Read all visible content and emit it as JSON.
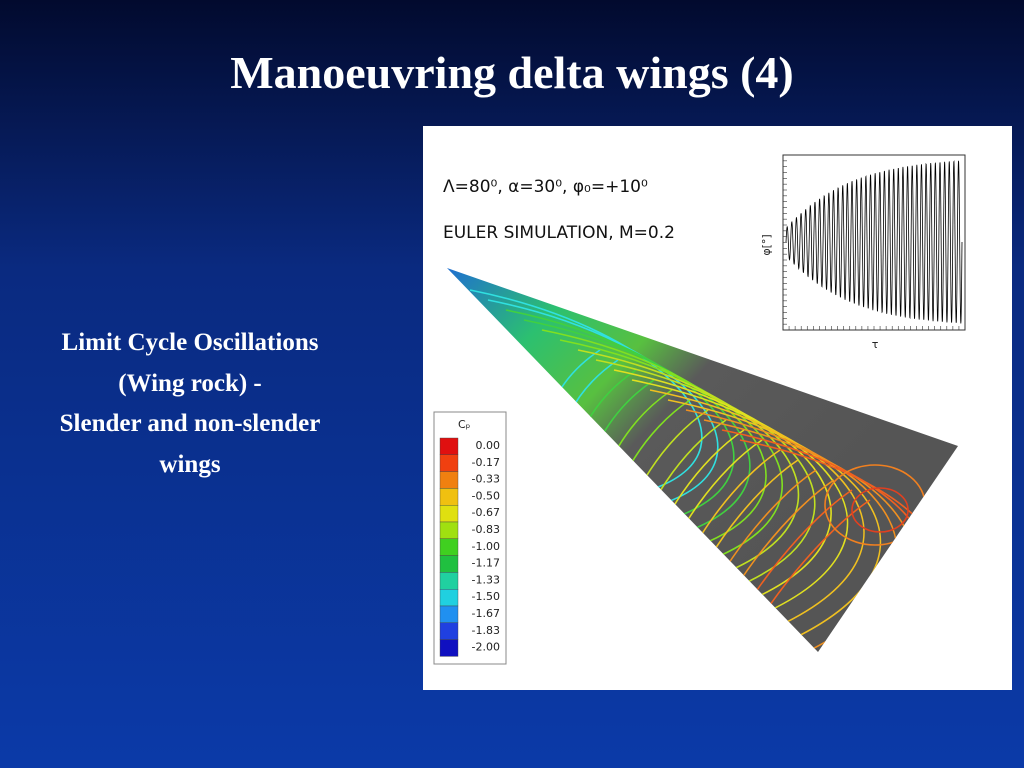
{
  "slide": {
    "title": "Manoeuvring delta wings (4)",
    "body": [
      "Limit Cycle Oscillations",
      "(Wing rock) -",
      "Slender and non-slender",
      "wings"
    ],
    "figure": {
      "parameters": "Λ=80⁰, α=30⁰, φ₀=+10⁰",
      "simulation": "EULER SIMULATION, M=0.2",
      "legend_title": "Cₚ",
      "legend_labels": [
        "0.00",
        "-0.17",
        "-0.33",
        "-0.50",
        "-0.67",
        "-0.83",
        "-1.00",
        "-1.17",
        "-1.33",
        "-1.50",
        "-1.67",
        "-1.83",
        "-2.00"
      ],
      "plot_ylabel": "φ[°]",
      "plot_xlabel": "τ"
    }
  }
}
